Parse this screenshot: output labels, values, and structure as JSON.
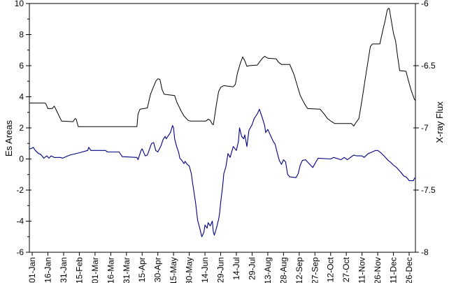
{
  "chart_data": {
    "type": "line",
    "title": "",
    "legend": "none",
    "grid": "off",
    "plot_frame": true,
    "background_color": "#ffffff",
    "left_axis": {
      "label": "Es Areas",
      "min": -6,
      "max": 10,
      "major_ticks": [
        10,
        8,
        6,
        4,
        2,
        0,
        -2,
        -4,
        -6
      ],
      "major_tick_labels": [
        "10",
        "8",
        "6",
        "4",
        "2",
        "0",
        "-2",
        "-4",
        "-6"
      ],
      "minor_tick_step": 1
    },
    "right_axis": {
      "label": "X-ray Flux",
      "min": -8,
      "max": -6,
      "major_ticks": [
        -6,
        -6.5,
        -7,
        -7.5,
        -8
      ],
      "major_tick_labels": [
        "-6",
        "-6.5",
        "-7",
        "-7.5",
        "-8"
      ]
    },
    "x_axis": {
      "label": "",
      "tick_labels": [
        "01-Jan",
        "16-Jan",
        "31-Jan",
        "15-Feb",
        "01-Mar",
        "16-Mar",
        "31-Mar",
        "15-Apr",
        "30-Apr",
        "15-May",
        "30-May",
        "14-Jun",
        "29-Jun",
        "14-Jul",
        "29-Jul",
        "13-Aug",
        "28-Aug",
        "12-Sep",
        "27-Sep",
        "12-Oct",
        "27-Oct",
        "11-Nov",
        "26-Nov",
        "11-Dec",
        "26-Dec"
      ],
      "tick_days": [
        0,
        15,
        30,
        45,
        60,
        75,
        90,
        105,
        120,
        135,
        150,
        165,
        180,
        195,
        210,
        225,
        240,
        255,
        270,
        285,
        300,
        315,
        330,
        345,
        360
      ],
      "day_min": -2.7,
      "day_max": 366,
      "label_rotation_deg": -90
    },
    "series": [
      {
        "name": "Es Areas",
        "axis": "left",
        "color": "#000080",
        "line_width": 1.1,
        "points": [
          [
            -2,
            0.65
          ],
          [
            0,
            0.7
          ],
          [
            1,
            0.75
          ],
          [
            3,
            0.55
          ],
          [
            6,
            0.35
          ],
          [
            8,
            0.3
          ],
          [
            10,
            0.15
          ],
          [
            11,
            0.05
          ],
          [
            14,
            0.2
          ],
          [
            16,
            0.05
          ],
          [
            18,
            0.2
          ],
          [
            21,
            0.1
          ],
          [
            27,
            0.1
          ],
          [
            29,
            0.05
          ],
          [
            36,
            0.25
          ],
          [
            45,
            0.4
          ],
          [
            53,
            0.55
          ],
          [
            54,
            0.75
          ],
          [
            56,
            0.55
          ],
          [
            70,
            0.55
          ],
          [
            72,
            0.45
          ],
          [
            83,
            0.45
          ],
          [
            86,
            0.15
          ],
          [
            100,
            0.1
          ],
          [
            101,
            -0.05
          ],
          [
            104,
            0.55
          ],
          [
            105,
            0.65
          ],
          [
            108,
            0.2
          ],
          [
            110,
            0.25
          ],
          [
            114,
            1.0
          ],
          [
            116,
            1.05
          ],
          [
            118,
            0.55
          ],
          [
            120,
            0.45
          ],
          [
            123,
            0.85
          ],
          [
            125,
            1.25
          ],
          [
            127,
            1.45
          ],
          [
            128,
            1.3
          ],
          [
            132,
            1.7
          ],
          [
            134,
            2.15
          ],
          [
            135,
            2.0
          ],
          [
            136,
            1.3
          ],
          [
            138,
            0.8
          ],
          [
            140,
            0.4
          ],
          [
            141,
            0.05
          ],
          [
            143,
            -0.1
          ],
          [
            145,
            -0.3
          ],
          [
            146,
            -0.15
          ],
          [
            148,
            -0.35
          ],
          [
            150,
            -0.45
          ],
          [
            152,
            -0.95
          ],
          [
            153,
            -1.45
          ],
          [
            156,
            -2.8
          ],
          [
            158,
            -3.95
          ],
          [
            160,
            -4.45
          ],
          [
            162,
            -5.0
          ],
          [
            164,
            -4.7
          ],
          [
            165,
            -4.25
          ],
          [
            167,
            -4.45
          ],
          [
            168,
            -4.1
          ],
          [
            170,
            -4.3
          ],
          [
            172,
            -4.0
          ],
          [
            173,
            -4.7
          ],
          [
            174,
            -4.9
          ],
          [
            176,
            -4.45
          ],
          [
            178,
            -3.9
          ],
          [
            179,
            -3.5
          ],
          [
            180,
            -2.8
          ],
          [
            182,
            -1.7
          ],
          [
            183,
            -0.95
          ],
          [
            185,
            -0.5
          ],
          [
            187,
            0.35
          ],
          [
            189,
            0.1
          ],
          [
            192,
            0.8
          ],
          [
            195,
            0.55
          ],
          [
            197,
            1.15
          ],
          [
            198,
            2.0
          ],
          [
            200,
            1.45
          ],
          [
            202,
            1.3
          ],
          [
            203,
            1.55
          ],
          [
            205,
            0.8
          ],
          [
            207,
            1.85
          ],
          [
            210,
            2.2
          ],
          [
            212,
            2.6
          ],
          [
            215,
            2.9
          ],
          [
            217,
            3.2
          ],
          [
            220,
            2.6
          ],
          [
            222,
            2.15
          ],
          [
            223,
            1.7
          ],
          [
            225,
            1.9
          ],
          [
            230,
            1.15
          ],
          [
            232,
            0.95
          ],
          [
            234,
            0.4
          ],
          [
            236,
            -0.1
          ],
          [
            238,
            -0.35
          ],
          [
            240,
            -0.05
          ],
          [
            242,
            -0.2
          ],
          [
            244,
            -1.0
          ],
          [
            246,
            -1.15
          ],
          [
            252,
            -1.2
          ],
          [
            254,
            -0.95
          ],
          [
            256,
            -0.4
          ],
          [
            258,
            -0.1
          ],
          [
            261,
            -0.05
          ],
          [
            263,
            -0.2
          ],
          [
            268,
            -0.55
          ],
          [
            273,
            0.05
          ],
          [
            285,
            0.0
          ],
          [
            288,
            0.1
          ],
          [
            295,
            -0.05
          ],
          [
            298,
            0.1
          ],
          [
            301,
            -0.05
          ],
          [
            307,
            0.25
          ],
          [
            310,
            0.2
          ],
          [
            315,
            0.2
          ],
          [
            317,
            0.1
          ],
          [
            321,
            0.35
          ],
          [
            323,
            0.4
          ],
          [
            328,
            0.55
          ],
          [
            330,
            0.55
          ],
          [
            333,
            0.4
          ],
          [
            336,
            0.2
          ],
          [
            338,
            0.05
          ],
          [
            340,
            -0.1
          ],
          [
            342,
            -0.2
          ],
          [
            345,
            -0.4
          ],
          [
            348,
            -0.55
          ],
          [
            350,
            -0.7
          ],
          [
            352,
            -0.85
          ],
          [
            355,
            -1.1
          ],
          [
            357,
            -1.15
          ],
          [
            359,
            -1.3
          ],
          [
            360,
            -1.4
          ],
          [
            364,
            -1.4
          ],
          [
            365,
            -1.25
          ],
          [
            366,
            -1.2
          ]
        ]
      },
      {
        "name": "X-ray Flux",
        "axis": "right",
        "color": "#000000",
        "line_width": 1.0,
        "points": [
          [
            -2,
            -6.8
          ],
          [
            12,
            -6.8
          ],
          [
            13,
            -6.805
          ],
          [
            15,
            -6.845
          ],
          [
            19,
            -6.845
          ],
          [
            21,
            -6.825
          ],
          [
            22,
            -6.84
          ],
          [
            26,
            -6.91
          ],
          [
            28,
            -6.945
          ],
          [
            39,
            -6.95
          ],
          [
            41,
            -6.925
          ],
          [
            42,
            -6.93
          ],
          [
            44,
            -6.99
          ],
          [
            100,
            -6.99
          ],
          [
            101,
            -6.89
          ],
          [
            103,
            -6.85
          ],
          [
            110,
            -6.84
          ],
          [
            113,
            -6.73
          ],
          [
            118,
            -6.625
          ],
          [
            120,
            -6.605
          ],
          [
            122,
            -6.61
          ],
          [
            124,
            -6.69
          ],
          [
            126,
            -6.73
          ],
          [
            136,
            -6.74
          ],
          [
            138,
            -6.79
          ],
          [
            142,
            -6.86
          ],
          [
            145,
            -6.905
          ],
          [
            149,
            -6.94
          ],
          [
            151,
            -6.945
          ],
          [
            166,
            -6.945
          ],
          [
            168,
            -6.93
          ],
          [
            170,
            -6.94
          ],
          [
            172,
            -6.97
          ],
          [
            173,
            -6.975
          ],
          [
            174,
            -6.925
          ],
          [
            176,
            -6.81
          ],
          [
            178,
            -6.71
          ],
          [
            180,
            -6.675
          ],
          [
            183,
            -6.66
          ],
          [
            192,
            -6.67
          ],
          [
            194,
            -6.65
          ],
          [
            196,
            -6.56
          ],
          [
            199,
            -6.475
          ],
          [
            201,
            -6.43
          ],
          [
            203,
            -6.46
          ],
          [
            205,
            -6.505
          ],
          [
            207,
            -6.5
          ],
          [
            215,
            -6.495
          ],
          [
            218,
            -6.46
          ],
          [
            220,
            -6.44
          ],
          [
            222,
            -6.425
          ],
          [
            225,
            -6.44
          ],
          [
            233,
            -6.445
          ],
          [
            235,
            -6.47
          ],
          [
            238,
            -6.49
          ],
          [
            246,
            -6.49
          ],
          [
            250,
            -6.57
          ],
          [
            253,
            -6.655
          ],
          [
            256,
            -6.74
          ],
          [
            260,
            -6.805
          ],
          [
            263,
            -6.845
          ],
          [
            275,
            -6.85
          ],
          [
            279,
            -6.89
          ],
          [
            282,
            -6.925
          ],
          [
            286,
            -6.95
          ],
          [
            289,
            -6.965
          ],
          [
            305,
            -6.965
          ],
          [
            307,
            -6.985
          ],
          [
            309,
            -6.96
          ],
          [
            312,
            -6.925
          ],
          [
            315,
            -6.775
          ],
          [
            318,
            -6.61
          ],
          [
            321,
            -6.45
          ],
          [
            323,
            -6.345
          ],
          [
            325,
            -6.325
          ],
          [
            332,
            -6.325
          ],
          [
            335,
            -6.21
          ],
          [
            337,
            -6.14
          ],
          [
            339,
            -6.055
          ],
          [
            340,
            -6.04
          ],
          [
            341,
            -6.04
          ],
          [
            343,
            -6.14
          ],
          [
            345,
            -6.24
          ],
          [
            347,
            -6.3
          ],
          [
            349,
            -6.425
          ],
          [
            351,
            -6.54
          ],
          [
            357,
            -6.545
          ],
          [
            359,
            -6.61
          ],
          [
            362,
            -6.7
          ],
          [
            365,
            -6.77
          ],
          [
            366,
            -6.78
          ]
        ]
      }
    ]
  }
}
